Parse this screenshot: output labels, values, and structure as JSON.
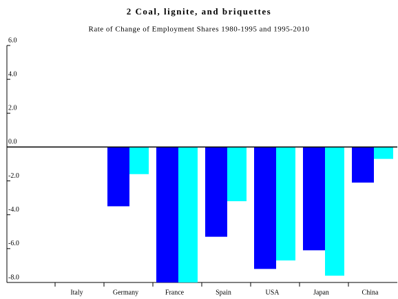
{
  "chart_data": {
    "type": "bar",
    "title": "2 Coal, lignite, and briquettes",
    "subtitle": "Rate of Change of Employment Shares 1980-1995 and 1995-2010",
    "categories": [
      "Italy",
      "Germany",
      "France",
      "Spain",
      "USA",
      "Japan",
      "China"
    ],
    "series": [
      {
        "color": "#0000ff",
        "values": [
          0,
          -3.5,
          -8.0,
          -5.3,
          -7.2,
          -6.1,
          -2.1
        ]
      },
      {
        "color": "#00ffff",
        "values": [
          0,
          -1.6,
          -8.0,
          -3.2,
          -6.7,
          -7.6,
          -0.7
        ]
      }
    ],
    "ylim": [
      -8,
      6
    ],
    "yticks": [
      {
        "value": 6,
        "label": "6.0"
      },
      {
        "value": 4,
        "label": "4.0"
      },
      {
        "value": 2,
        "label": "2.0"
      },
      {
        "value": 0,
        "label": "0.0"
      },
      {
        "value": -2,
        "label": "-2.0"
      },
      {
        "value": -4,
        "label": "-4.0"
      },
      {
        "value": -6,
        "label": "-6.0"
      },
      {
        "value": -8,
        "label": "-8.0"
      }
    ],
    "grid": false
  }
}
